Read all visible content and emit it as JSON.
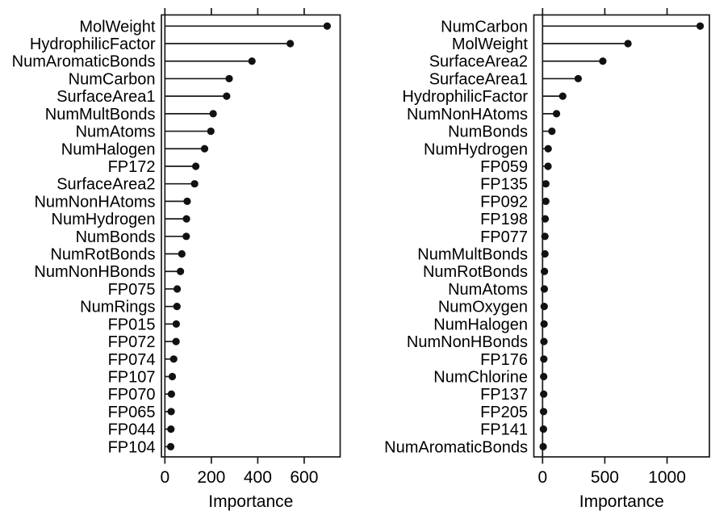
{
  "figure": {
    "description": "Two side-by-side variable importance lollipop dot plots",
    "background_color": "#ffffff",
    "ink_color": "#1a1a1a",
    "dot_color": "#111111"
  },
  "chart_data": [
    {
      "type": "scatter",
      "style": "lollipop-dotplot",
      "orientation": "horizontal",
      "title": "",
      "xlabel": "Importance",
      "ylabel": "",
      "grid": false,
      "xlim": [
        -15,
        755
      ],
      "xticks": [
        0,
        200,
        400,
        600
      ],
      "categories": [
        "MolWeight",
        "HydrophilicFactor",
        "NumAromaticBonds",
        "NumCarbon",
        "SurfaceArea1",
        "NumMultBonds",
        "NumAtoms",
        "NumHalogen",
        "FP172",
        "SurfaceArea2",
        "NumNonHAtoms",
        "NumHydrogen",
        "NumBonds",
        "NumRotBonds",
        "NumNonHBonds",
        "FP075",
        "NumRings",
        "FP015",
        "FP072",
        "FP074",
        "FP107",
        "FP070",
        "FP065",
        "FP044",
        "FP104"
      ],
      "values": [
        699,
        540,
        375,
        277,
        266,
        208,
        198,
        171,
        133,
        128,
        96,
        93,
        92,
        73,
        67,
        53,
        52,
        49,
        48,
        38,
        32,
        28,
        27,
        26,
        25
      ]
    },
    {
      "type": "scatter",
      "style": "lollipop-dotplot",
      "orientation": "horizontal",
      "title": "",
      "xlabel": "Importance",
      "ylabel": "",
      "grid": false,
      "xlim": [
        -70,
        1340
      ],
      "xticks": [
        0,
        500,
        1000
      ],
      "categories": [
        "NumCarbon",
        "MolWeight",
        "SurfaceArea2",
        "SurfaceArea1",
        "HydrophilicFactor",
        "NumNonHAtoms",
        "NumBonds",
        "NumHydrogen",
        "FP059",
        "FP135",
        "FP092",
        "FP198",
        "FP077",
        "NumMultBonds",
        "NumRotBonds",
        "NumAtoms",
        "NumOxygen",
        "NumHalogen",
        "NumNonHBonds",
        "FP176",
        "NumChlorine",
        "FP137",
        "FP205",
        "FP141",
        "NumAromaticBonds"
      ],
      "values": [
        1266,
        686,
        484,
        286,
        162,
        112,
        75,
        45,
        44,
        26,
        26,
        21,
        19,
        19,
        15,
        14,
        13,
        12,
        11,
        10,
        9,
        9,
        8,
        7,
        5
      ]
    }
  ]
}
